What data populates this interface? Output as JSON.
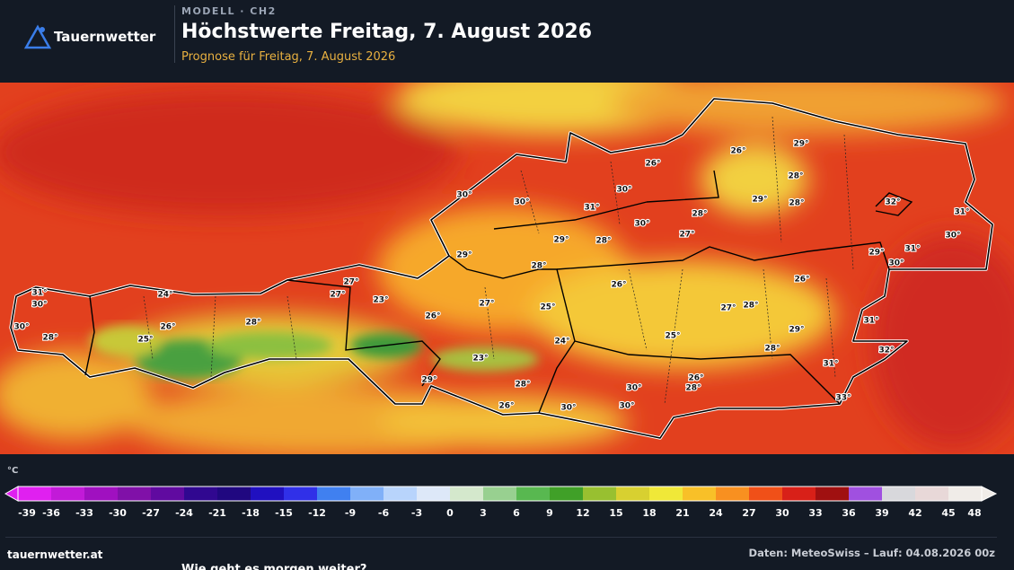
{
  "header": {
    "logo": "Tauernwetter",
    "kicker": "MODELL · CH2",
    "title": "Höchstwerte Freitag, 7. August 2026",
    "subtitle": "Prognose für Freitag, 7. August 2026"
  },
  "map": {
    "labels": [
      "31°",
      "30°",
      "30°",
      "28°",
      "24°",
      "26°",
      "25°",
      "28°",
      "27°",
      "27°",
      "23°",
      "26°",
      "27°",
      "25°",
      "24°",
      "29°",
      "23°",
      "28°",
      "26°",
      "30°",
      "30°",
      "30°",
      "26°",
      "28°",
      "25°",
      "27°",
      "28°",
      "28°",
      "29°",
      "31°",
      "33°",
      "32°",
      "31°",
      "26°",
      "29°",
      "30°",
      "31°",
      "30°",
      "31°",
      "32°",
      "28°",
      "29°",
      "28°",
      "26°",
      "29°",
      "26°",
      "30°",
      "30°",
      "28°",
      "27°",
      "28°",
      "29°",
      "31°",
      "30°",
      "30°",
      "29°",
      "28°",
      "26°"
    ]
  },
  "legend": {
    "unit": "°C",
    "ticks": [
      -39,
      -36,
      -33,
      -30,
      -27,
      -24,
      -21,
      -18,
      -15,
      -12,
      -9,
      -6,
      -3,
      0,
      3,
      6,
      9,
      12,
      15,
      18,
      21,
      24,
      27,
      30,
      33,
      36,
      39,
      42,
      45,
      48
    ],
    "colors": [
      "#e020f0",
      "#c21ad8",
      "#a010c0",
      "#8010a8",
      "#600aa0",
      "#300890",
      "#200880",
      "#2010c0",
      "#3030e8",
      "#4080f0",
      "#80b0f8",
      "#b8d4fc",
      "#dde8f8",
      "#d4e8cc",
      "#98d090",
      "#58b850",
      "#40a028",
      "#98c030",
      "#d8d030",
      "#f0e838",
      "#f8c028",
      "#f89020",
      "#f05018",
      "#d82018",
      "#a01010",
      "#a050e0",
      "#d8d8dc",
      "#e8d8d8",
      "#f0ece8"
    ]
  },
  "footer": {
    "site": "tauernwetter.at",
    "source": "Daten: MeteoSwiss – Lauf: 04.08.2026 00z",
    "teaser": "Wie geht es morgen weiter?"
  }
}
